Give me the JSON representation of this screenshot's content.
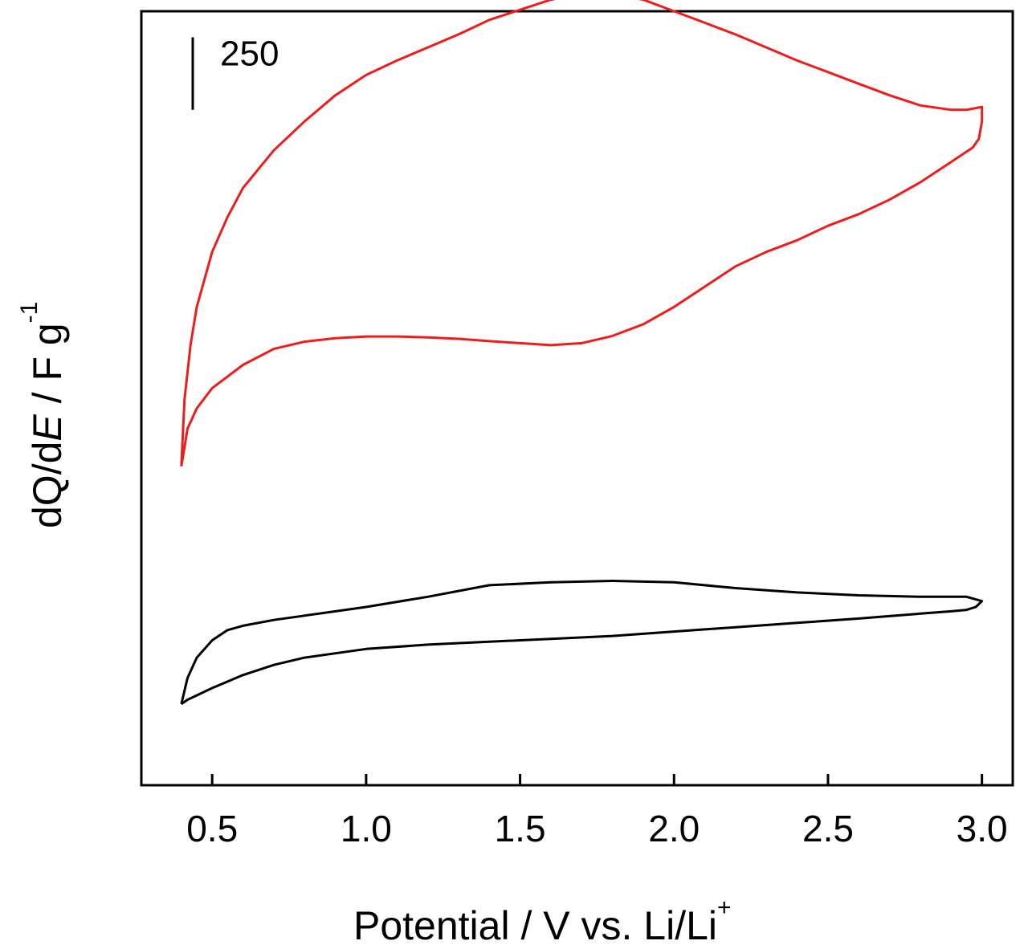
{
  "chart_data": {
    "type": "line",
    "xlabel_main": "Potential / V vs. Li/Li",
    "xlabel_sup": "+",
    "ylabel_pre": "dQ/d",
    "ylabel_ital": "E",
    "ylabel_post": " / F g",
    "ylabel_sup": "-1",
    "xlim": [
      0.27,
      3.1
    ],
    "x_ticks": [
      0.5,
      1.0,
      1.5,
      2.0,
      2.5,
      3.0
    ],
    "x_tick_labels": [
      "0.5",
      "1.0",
      "1.5",
      "2.0",
      "2.5",
      "3.0"
    ],
    "ylim": [
      -1320,
      1350
    ],
    "scale_bar": {
      "label": "250",
      "value": 250,
      "y_top": 1260
    },
    "grid": false,
    "series": [
      {
        "color": "#ee1c1c",
        "x": [
          0.4,
          0.41,
          0.43,
          0.45,
          0.5,
          0.55,
          0.6,
          0.7,
          0.8,
          0.9,
          1.0,
          1.1,
          1.2,
          1.3,
          1.4,
          1.5,
          1.6,
          1.7,
          1.8,
          1.9,
          2.0,
          2.1,
          2.2,
          2.3,
          2.4,
          2.5,
          2.6,
          2.7,
          2.8,
          2.9,
          2.95,
          3.0,
          3.0,
          2.99,
          2.97,
          2.9,
          2.8,
          2.7,
          2.6,
          2.5,
          2.4,
          2.3,
          2.2,
          2.1,
          2.0,
          1.9,
          1.8,
          1.7,
          1.6,
          1.5,
          1.4,
          1.3,
          1.2,
          1.1,
          1.0,
          0.9,
          0.8,
          0.7,
          0.6,
          0.5,
          0.45,
          0.42,
          0.4
        ],
        "y": [
          -220,
          10,
          200,
          330,
          520,
          640,
          740,
          870,
          970,
          1060,
          1130,
          1180,
          1225,
          1270,
          1320,
          1355,
          1390,
          1410,
          1410,
          1390,
          1350,
          1310,
          1270,
          1225,
          1180,
          1140,
          1100,
          1060,
          1025,
          1010,
          1010,
          1020,
          970,
          910,
          880,
          830,
          760,
          700,
          650,
          610,
          560,
          520,
          470,
          400,
          330,
          270,
          230,
          205,
          198,
          205,
          212,
          220,
          225,
          228,
          228,
          222,
          210,
          185,
          130,
          50,
          -20,
          -90,
          -220
        ]
      },
      {
        "color": "#000000",
        "x": [
          0.4,
          0.42,
          0.45,
          0.5,
          0.55,
          0.6,
          0.7,
          0.8,
          1.0,
          1.2,
          1.4,
          1.6,
          1.8,
          2.0,
          2.2,
          2.4,
          2.6,
          2.8,
          2.9,
          2.95,
          3.0,
          2.98,
          2.95,
          2.9,
          2.8,
          2.6,
          2.4,
          2.2,
          2.0,
          1.8,
          1.6,
          1.4,
          1.2,
          1.0,
          0.8,
          0.7,
          0.6,
          0.5,
          0.45,
          0.42,
          0.4
        ],
        "y": [
          -1040,
          -950,
          -880,
          -820,
          -785,
          -770,
          -750,
          -735,
          -705,
          -670,
          -630,
          -620,
          -615,
          -620,
          -640,
          -655,
          -665,
          -670,
          -670,
          -670,
          -685,
          -705,
          -715,
          -720,
          -728,
          -745,
          -760,
          -775,
          -790,
          -805,
          -815,
          -825,
          -835,
          -850,
          -880,
          -905,
          -940,
          -985,
          -1010,
          -1025,
          -1040
        ]
      }
    ]
  }
}
